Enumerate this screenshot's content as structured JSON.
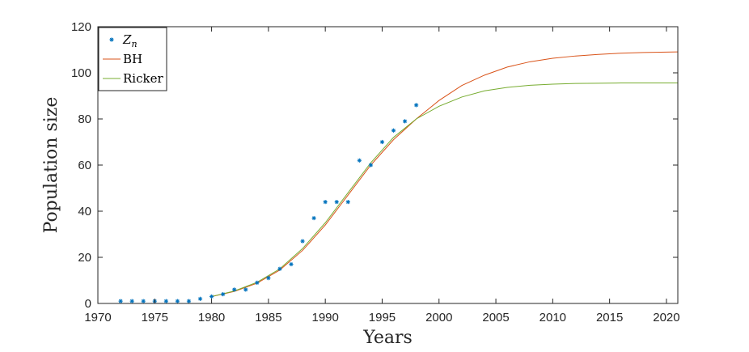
{
  "chart_data": {
    "type": "line",
    "title": "",
    "xlabel": "Years",
    "ylabel": "Population size",
    "xlim": [
      1970,
      2021
    ],
    "ylim": [
      0,
      120
    ],
    "xticks": [
      1970,
      1975,
      1980,
      1985,
      1990,
      1995,
      2000,
      2005,
      2010,
      2015,
      2020
    ],
    "yticks": [
      0,
      20,
      40,
      60,
      80,
      100,
      120
    ],
    "grid": false,
    "legend_position": "top-left",
    "legend": [
      {
        "label_main": "Z",
        "label_sub": "n",
        "marker": "asterisk",
        "color": "#0072BD"
      },
      {
        "label_main": "BH",
        "label_sub": "",
        "marker": "line",
        "color": "#D95319"
      },
      {
        "label_main": "Ricker",
        "label_sub": "",
        "marker": "line",
        "color": "#77AC30"
      }
    ],
    "series": [
      {
        "name": "Zn",
        "kind": "scatter",
        "color": "#0072BD",
        "x": [
          1972,
          1973,
          1974,
          1975,
          1976,
          1977,
          1978,
          1979,
          1980,
          1981,
          1982,
          1983,
          1984,
          1985,
          1986,
          1987,
          1988,
          1989,
          1990,
          1991,
          1992,
          1993,
          1994,
          1995,
          1996,
          1997,
          1998
        ],
        "y": [
          1,
          1,
          1,
          1,
          1,
          1,
          1,
          2,
          3,
          4,
          6,
          6,
          9,
          11,
          15,
          17,
          27,
          37,
          44,
          44,
          44,
          62,
          60,
          70,
          75,
          79,
          86
        ]
      },
      {
        "name": "BH",
        "kind": "line",
        "color": "#D95319",
        "x": [
          1980,
          1982,
          1984,
          1986,
          1988,
          1990,
          1992,
          1994,
          1996,
          1998,
          2000,
          2002,
          2004,
          2006,
          2008,
          2010,
          2012,
          2014,
          2016,
          2018,
          2021
        ],
        "y": [
          3,
          5.2,
          8.8,
          14.5,
          23,
          34,
          47,
          60,
          71,
          80,
          88,
          94.5,
          99,
          102.5,
          104.8,
          106.3,
          107.3,
          108,
          108.5,
          108.8,
          109.1
        ]
      },
      {
        "name": "Ricker",
        "kind": "line",
        "color": "#77AC30",
        "x": [
          1980,
          1982,
          1984,
          1986,
          1988,
          1990,
          1992,
          1994,
          1996,
          1998,
          2000,
          2002,
          2004,
          2006,
          2008,
          2010,
          2012,
          2014,
          2016,
          2018,
          2021
        ],
        "y": [
          3,
          5.4,
          9.2,
          15,
          23.8,
          35,
          48,
          61,
          72,
          80,
          85.5,
          89.5,
          92.2,
          93.7,
          94.6,
          95.1,
          95.4,
          95.5,
          95.6,
          95.6,
          95.6
        ]
      }
    ]
  }
}
